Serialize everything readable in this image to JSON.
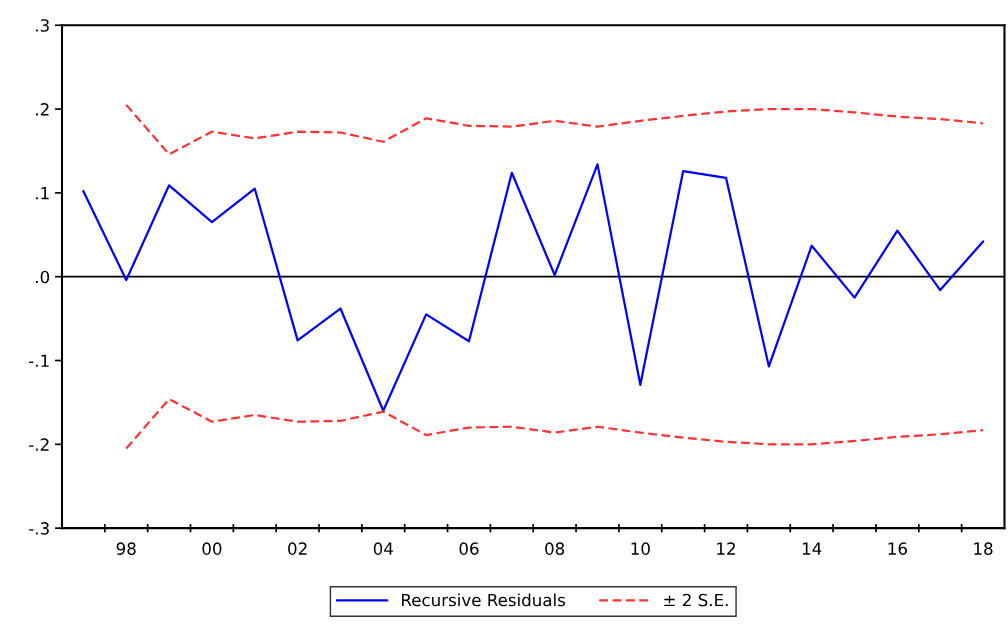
{
  "chart_data": {
    "type": "line",
    "categories": [
      null,
      "98",
      null,
      "00",
      null,
      "02",
      null,
      "04",
      null,
      "06",
      null,
      "08",
      null,
      "10",
      null,
      "12",
      null,
      "14",
      null,
      "16",
      null,
      "18"
    ],
    "series": [
      {
        "name": "Recursive Residuals",
        "color": "#0000ff",
        "line_style": "solid",
        "values": [
          0.102,
          -0.004,
          0.109,
          0.065,
          0.105,
          -0.076,
          -0.038,
          -0.16,
          -0.045,
          -0.077,
          0.124,
          0.002,
          0.134,
          -0.129,
          0.126,
          0.118,
          -0.107,
          0.037,
          -0.025,
          0.055,
          -0.016,
          0.042
        ]
      },
      {
        "name": "± 2 S.E.",
        "color": "#ff3333",
        "line_style": "dashed",
        "values": [
          null,
          0.205,
          0.146,
          0.173,
          0.165,
          0.173,
          0.172,
          0.161,
          0.189,
          0.18,
          0.179,
          0.186,
          0.179,
          0.186,
          0.192,
          0.197,
          0.2,
          0.2,
          0.196,
          0.191,
          0.188,
          0.183
        ]
      },
      {
        "color": "#ff3333",
        "line_style": "dashed",
        "values": [
          null,
          -0.205,
          -0.146,
          -0.173,
          -0.165,
          -0.173,
          -0.172,
          -0.161,
          -0.189,
          -0.18,
          -0.179,
          -0.186,
          -0.179,
          -0.186,
          -0.192,
          -0.197,
          -0.2,
          -0.2,
          -0.196,
          -0.191,
          -0.188,
          -0.183
        ]
      }
    ],
    "ylim": [
      -0.3,
      0.3
    ],
    "yticks": [
      {
        "value": -0.3,
        "label": "-.3"
      },
      {
        "value": -0.2,
        "label": "-.2"
      },
      {
        "value": -0.1,
        "label": "-.1"
      },
      {
        "value": 0,
        "label": ".0"
      },
      {
        "value": 0.1,
        "label": ".1"
      },
      {
        "value": 0.2,
        "label": ".2"
      },
      {
        "value": 0.3,
        "label": ".3"
      }
    ],
    "ref_lines": [
      {
        "axis": "y",
        "value": 0,
        "color": "#000000",
        "line_style": "solid"
      }
    ],
    "legend": "bottom",
    "grid": false
  }
}
